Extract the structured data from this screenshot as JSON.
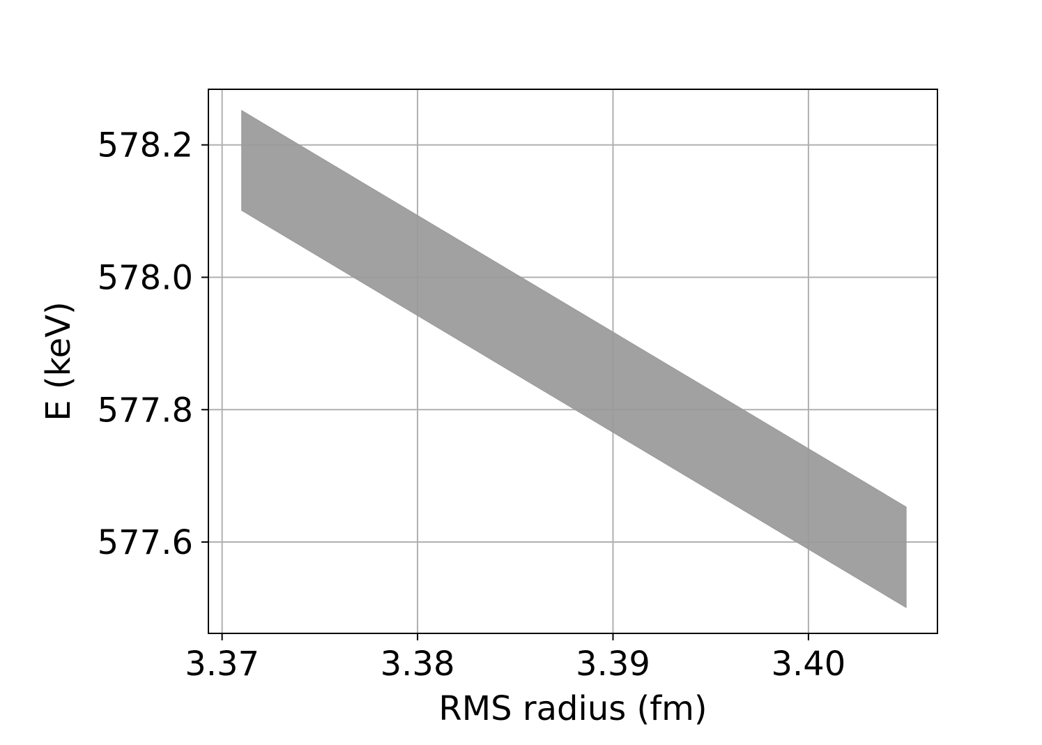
{
  "chart_data": {
    "type": "area",
    "title": "",
    "xlabel": "RMS radius (fm)",
    "ylabel": "E (keV)",
    "xlim": [
      3.3693,
      3.4066
    ],
    "ylim": [
      577.462,
      578.284
    ],
    "xticks": [
      3.37,
      3.38,
      3.39,
      3.4
    ],
    "xtick_labels": [
      "3.37",
      "3.38",
      "3.39",
      "3.40"
    ],
    "yticks": [
      577.6,
      577.8,
      578.0,
      578.2
    ],
    "ytick_labels": [
      "577.6",
      "577.8",
      "578.0",
      "578.2"
    ],
    "grid": true,
    "legend": "none",
    "fill_color": "#999999",
    "band": {
      "x": [
        3.371,
        3.405
      ],
      "y_upper": [
        578.252,
        577.653
      ],
      "y_lower": [
        578.101,
        577.501
      ]
    }
  }
}
